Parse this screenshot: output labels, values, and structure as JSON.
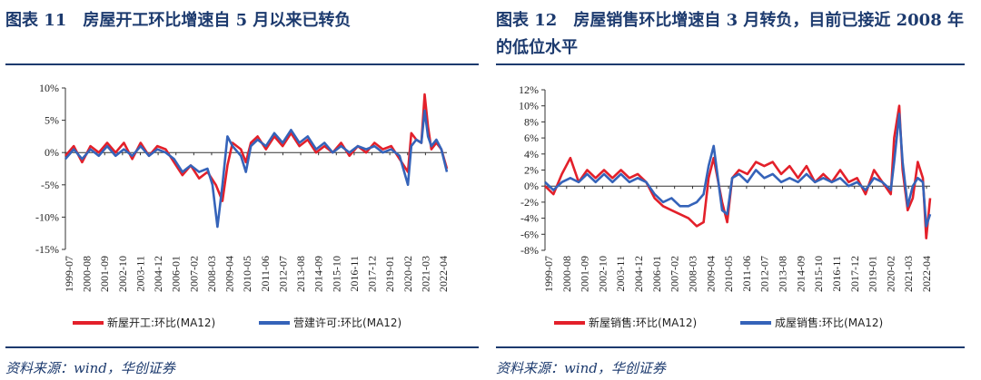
{
  "panels": [
    {
      "title": "图表 11　房屋开工环比增速自 5 月以来已转负",
      "source": "资料来源：wind，华创证券",
      "chart_data": {
        "type": "line",
        "title": "图表 11 房屋开工环比增速自 5 月以来已转负",
        "ylim": [
          -15,
          10
        ],
        "yticks": [
          10,
          5,
          0,
          -5,
          -10,
          -15
        ],
        "ytick_labels": [
          "10%",
          "5%",
          "0%",
          "-5%",
          "-10%",
          "-15%"
        ],
        "x_range": [
          1999.5,
          2022.33
        ],
        "xtick_labels": [
          "1999-07",
          "2000-08",
          "2001-09",
          "2002-10",
          "2003-11",
          "2004-12",
          "2006-01",
          "2007-02",
          "2008-03",
          "2009-04",
          "2010-05",
          "2011-06",
          "2012-07",
          "2013-08",
          "2014-09",
          "2015-10",
          "2016-11",
          "2017-12",
          "2019-01",
          "2020-02",
          "2021-03",
          "2022-04"
        ],
        "series": [
          {
            "name": "新屋开工:环比(MA12)",
            "color": "#e3202a",
            "points": [
              [
                1999.5,
                -0.5
              ],
              [
                2000.0,
                1.0
              ],
              [
                2000.5,
                -1.5
              ],
              [
                2001.0,
                1.0
              ],
              [
                2001.5,
                0.0
              ],
              [
                2002.0,
                1.5
              ],
              [
                2002.5,
                0.0
              ],
              [
                2003.0,
                1.5
              ],
              [
                2003.5,
                -1.0
              ],
              [
                2004.0,
                1.5
              ],
              [
                2004.5,
                -0.5
              ],
              [
                2005.0,
                1.0
              ],
              [
                2005.5,
                0.5
              ],
              [
                2006.0,
                -1.5
              ],
              [
                2006.5,
                -3.5
              ],
              [
                2007.0,
                -2.0
              ],
              [
                2007.5,
                -4.0
              ],
              [
                2008.0,
                -3.0
              ],
              [
                2008.5,
                -5.0
              ],
              [
                2008.9,
                -7.5
              ],
              [
                2009.2,
                -2.0
              ],
              [
                2009.5,
                1.5
              ],
              [
                2010.0,
                0.5
              ],
              [
                2010.3,
                -1.5
              ],
              [
                2010.6,
                1.5
              ],
              [
                2011.0,
                2.5
              ],
              [
                2011.5,
                0.5
              ],
              [
                2012.0,
                2.5
              ],
              [
                2012.5,
                1.0
              ],
              [
                2013.0,
                3.0
              ],
              [
                2013.5,
                1.0
              ],
              [
                2014.0,
                2.0
              ],
              [
                2014.5,
                0.0
              ],
              [
                2015.0,
                1.0
              ],
              [
                2015.5,
                0.0
              ],
              [
                2016.0,
                1.5
              ],
              [
                2016.5,
                -0.5
              ],
              [
                2017.0,
                1.0
              ],
              [
                2017.5,
                0.0
              ],
              [
                2018.0,
                1.5
              ],
              [
                2018.5,
                0.5
              ],
              [
                2019.0,
                1.0
              ],
              [
                2019.5,
                -1.0
              ],
              [
                2020.0,
                -3.0
              ],
              [
                2020.2,
                3.0
              ],
              [
                2020.5,
                2.0
              ],
              [
                2020.8,
                1.5
              ],
              [
                2021.0,
                9.0
              ],
              [
                2021.2,
                4.0
              ],
              [
                2021.4,
                0.5
              ],
              [
                2021.7,
                1.5
              ],
              [
                2022.0,
                0.5
              ],
              [
                2022.33,
                -2.5
              ]
            ]
          },
          {
            "name": "营建许可:环比(MA12)",
            "color": "#3563b9",
            "points": [
              [
                1999.5,
                -1.0
              ],
              [
                2000.0,
                0.5
              ],
              [
                2000.5,
                -1.0
              ],
              [
                2001.0,
                0.5
              ],
              [
                2001.5,
                -0.5
              ],
              [
                2002.0,
                1.0
              ],
              [
                2002.5,
                -0.5
              ],
              [
                2003.0,
                0.5
              ],
              [
                2003.5,
                -0.5
              ],
              [
                2004.0,
                1.0
              ],
              [
                2004.5,
                -0.5
              ],
              [
                2005.0,
                0.5
              ],
              [
                2005.5,
                0.0
              ],
              [
                2006.0,
                -1.0
              ],
              [
                2006.5,
                -3.0
              ],
              [
                2007.0,
                -2.0
              ],
              [
                2007.5,
                -3.0
              ],
              [
                2008.0,
                -2.5
              ],
              [
                2008.3,
                -5.0
              ],
              [
                2008.6,
                -11.5
              ],
              [
                2008.9,
                -5.0
              ],
              [
                2009.2,
                2.5
              ],
              [
                2009.5,
                1.0
              ],
              [
                2010.0,
                -0.5
              ],
              [
                2010.3,
                -3.0
              ],
              [
                2010.6,
                1.0
              ],
              [
                2011.0,
                2.0
              ],
              [
                2011.5,
                1.0
              ],
              [
                2012.0,
                3.0
              ],
              [
                2012.5,
                1.5
              ],
              [
                2013.0,
                3.5
              ],
              [
                2013.5,
                1.5
              ],
              [
                2014.0,
                2.5
              ],
              [
                2014.5,
                0.5
              ],
              [
                2015.0,
                1.5
              ],
              [
                2015.5,
                0.0
              ],
              [
                2016.0,
                1.0
              ],
              [
                2016.5,
                0.0
              ],
              [
                2017.0,
                1.0
              ],
              [
                2017.5,
                0.5
              ],
              [
                2018.0,
                1.0
              ],
              [
                2018.5,
                0.0
              ],
              [
                2019.0,
                0.5
              ],
              [
                2019.5,
                -0.5
              ],
              [
                2020.0,
                -5.0
              ],
              [
                2020.2,
                1.0
              ],
              [
                2020.5,
                2.0
              ],
              [
                2020.8,
                1.5
              ],
              [
                2021.0,
                6.5
              ],
              [
                2021.2,
                2.5
              ],
              [
                2021.4,
                1.0
              ],
              [
                2021.7,
                2.0
              ],
              [
                2022.0,
                0.5
              ],
              [
                2022.33,
                -3.0
              ]
            ]
          }
        ]
      }
    },
    {
      "title": "图表 12　房屋销售环比增速自 3 月转负，目前已接近 2008 年的低位水平",
      "source": "资料来源：wind，华创证券",
      "chart_data": {
        "type": "line",
        "title": "图表 12 房屋销售环比增速自 3 月转负，目前已接近 2008 年的低位水平",
        "ylim": [
          -8,
          12
        ],
        "yticks": [
          12,
          10,
          8,
          6,
          4,
          2,
          0,
          -2,
          -4,
          -6,
          -8
        ],
        "ytick_labels": [
          "12%",
          "10%",
          "8%",
          "6%",
          "4%",
          "2%",
          "0%",
          "-2%",
          "-4%",
          "-6%",
          "-8%"
        ],
        "x_range": [
          1999.5,
          2022.33
        ],
        "xtick_labels": [
          "1999-07",
          "2000-08",
          "2001-09",
          "2002-10",
          "2003-11",
          "2004-12",
          "2006-01",
          "2007-02",
          "2008-03",
          "2009-04",
          "2010-05",
          "2011-06",
          "2012-07",
          "2013-08",
          "2014-09",
          "2015-10",
          "2016-11",
          "2017-12",
          "2019-01",
          "2020-02",
          "2021-03",
          "2022-04"
        ],
        "series": [
          {
            "name": "新屋销售:环比(MA12)",
            "color": "#e3202a",
            "points": [
              [
                1999.5,
                0.0
              ],
              [
                2000.0,
                -1.0
              ],
              [
                2000.5,
                1.5
              ],
              [
                2001.0,
                3.5
              ],
              [
                2001.5,
                0.5
              ],
              [
                2002.0,
                2.0
              ],
              [
                2002.5,
                1.0
              ],
              [
                2003.0,
                2.0
              ],
              [
                2003.5,
                1.0
              ],
              [
                2004.0,
                2.0
              ],
              [
                2004.5,
                1.0
              ],
              [
                2005.0,
                1.5
              ],
              [
                2005.5,
                0.5
              ],
              [
                2006.0,
                -1.5
              ],
              [
                2006.5,
                -2.5
              ],
              [
                2007.0,
                -3.0
              ],
              [
                2007.5,
                -3.5
              ],
              [
                2008.0,
                -4.0
              ],
              [
                2008.5,
                -5.0
              ],
              [
                2008.9,
                -4.5
              ],
              [
                2009.2,
                1.0
              ],
              [
                2009.5,
                3.5
              ],
              [
                2010.0,
                -2.0
              ],
              [
                2010.3,
                -4.5
              ],
              [
                2010.6,
                1.0
              ],
              [
                2011.0,
                2.0
              ],
              [
                2011.5,
                1.5
              ],
              [
                2012.0,
                3.0
              ],
              [
                2012.5,
                2.5
              ],
              [
                2013.0,
                3.0
              ],
              [
                2013.5,
                1.5
              ],
              [
                2014.0,
                2.5
              ],
              [
                2014.5,
                1.0
              ],
              [
                2015.0,
                2.5
              ],
              [
                2015.5,
                0.5
              ],
              [
                2016.0,
                1.5
              ],
              [
                2016.5,
                0.5
              ],
              [
                2017.0,
                2.0
              ],
              [
                2017.5,
                0.5
              ],
              [
                2018.0,
                1.0
              ],
              [
                2018.5,
                -1.0
              ],
              [
                2019.0,
                2.0
              ],
              [
                2019.5,
                0.5
              ],
              [
                2020.0,
                -1.0
              ],
              [
                2020.2,
                6.0
              ],
              [
                2020.5,
                10.0
              ],
              [
                2020.7,
                2.0
              ],
              [
                2021.0,
                -3.0
              ],
              [
                2021.3,
                -1.5
              ],
              [
                2021.6,
                3.0
              ],
              [
                2021.9,
                1.0
              ],
              [
                2022.1,
                -6.5
              ],
              [
                2022.33,
                -1.5
              ]
            ]
          },
          {
            "name": "成屋销售:环比(MA12)",
            "color": "#3563b9",
            "points": [
              [
                1999.5,
                0.5
              ],
              [
                2000.0,
                -0.5
              ],
              [
                2000.5,
                0.5
              ],
              [
                2001.0,
                1.0
              ],
              [
                2001.5,
                0.5
              ],
              [
                2002.0,
                1.5
              ],
              [
                2002.5,
                0.5
              ],
              [
                2003.0,
                1.5
              ],
              [
                2003.5,
                0.5
              ],
              [
                2004.0,
                1.5
              ],
              [
                2004.5,
                0.5
              ],
              [
                2005.0,
                1.0
              ],
              [
                2005.5,
                0.5
              ],
              [
                2006.0,
                -1.0
              ],
              [
                2006.5,
                -2.0
              ],
              [
                2007.0,
                -1.5
              ],
              [
                2007.5,
                -2.5
              ],
              [
                2008.0,
                -2.5
              ],
              [
                2008.5,
                -2.0
              ],
              [
                2008.9,
                -1.0
              ],
              [
                2009.2,
                2.5
              ],
              [
                2009.5,
                5.0
              ],
              [
                2010.0,
                -3.0
              ],
              [
                2010.3,
                -3.5
              ],
              [
                2010.6,
                1.0
              ],
              [
                2011.0,
                1.5
              ],
              [
                2011.5,
                0.5
              ],
              [
                2012.0,
                2.0
              ],
              [
                2012.5,
                1.0
              ],
              [
                2013.0,
                1.5
              ],
              [
                2013.5,
                0.5
              ],
              [
                2014.0,
                1.0
              ],
              [
                2014.5,
                0.5
              ],
              [
                2015.0,
                1.5
              ],
              [
                2015.5,
                0.5
              ],
              [
                2016.0,
                1.0
              ],
              [
                2016.5,
                0.5
              ],
              [
                2017.0,
                1.0
              ],
              [
                2017.5,
                0.0
              ],
              [
                2018.0,
                0.5
              ],
              [
                2018.5,
                -0.5
              ],
              [
                2019.0,
                1.0
              ],
              [
                2019.5,
                0.5
              ],
              [
                2020.0,
                -0.5
              ],
              [
                2020.2,
                3.0
              ],
              [
                2020.5,
                9.0
              ],
              [
                2020.7,
                3.0
              ],
              [
                2021.0,
                -2.5
              ],
              [
                2021.3,
                0.0
              ],
              [
                2021.6,
                1.0
              ],
              [
                2021.9,
                0.5
              ],
              [
                2022.1,
                -5.0
              ],
              [
                2022.33,
                -3.5
              ]
            ]
          }
        ]
      }
    }
  ]
}
